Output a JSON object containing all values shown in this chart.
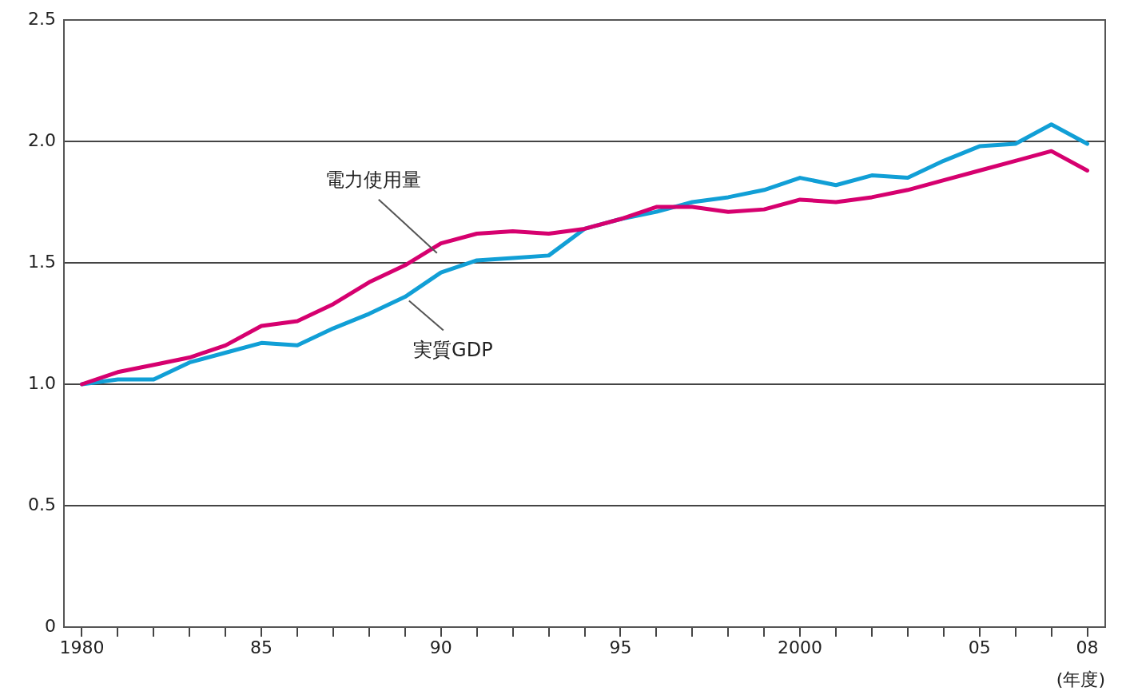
{
  "chart_data": {
    "type": "line",
    "xlabel": "(年度)",
    "x": [
      1980,
      1981,
      1982,
      1983,
      1984,
      1985,
      1986,
      1987,
      1988,
      1989,
      1990,
      1991,
      1992,
      1993,
      1994,
      1995,
      1996,
      1997,
      1998,
      1999,
      2000,
      2001,
      2002,
      2003,
      2004,
      2005,
      2006,
      2007,
      2008
    ],
    "series": [
      {
        "name": "電力使用量",
        "color": "#d6006f",
        "values": [
          1.0,
          1.05,
          1.08,
          1.11,
          1.16,
          1.24,
          1.26,
          1.33,
          1.42,
          1.49,
          1.58,
          1.62,
          1.63,
          1.62,
          1.64,
          1.68,
          1.73,
          1.73,
          1.71,
          1.72,
          1.76,
          1.75,
          1.77,
          1.8,
          1.84,
          1.88,
          1.92,
          1.96,
          1.88
        ]
      },
      {
        "name": "実質GDP",
        "color": "#119fd6",
        "values": [
          1.0,
          1.02,
          1.02,
          1.09,
          1.13,
          1.17,
          1.16,
          1.23,
          1.29,
          1.36,
          1.46,
          1.51,
          1.52,
          1.53,
          1.64,
          1.68,
          1.71,
          1.75,
          1.77,
          1.8,
          1.85,
          1.82,
          1.86,
          1.85,
          1.92,
          1.98,
          1.99,
          2.07,
          1.99
        ]
      }
    ],
    "xlim": [
      1979.5,
      2008.5
    ],
    "xticks": [
      1980,
      {
        "value": 1981,
        "label": null
      },
      {
        "value": 1982,
        "label": null
      },
      {
        "value": 1983,
        "label": null
      },
      {
        "value": 1984,
        "label": null
      },
      {
        "value": 1985,
        "label": "85"
      },
      {
        "value": 1986,
        "label": null
      },
      {
        "value": 1987,
        "label": null
      },
      {
        "value": 1988,
        "label": null
      },
      {
        "value": 1989,
        "label": null
      },
      {
        "value": 1990,
        "label": "90"
      },
      {
        "value": 1991,
        "label": null
      },
      {
        "value": 1992,
        "label": null
      },
      {
        "value": 1993,
        "label": null
      },
      {
        "value": 1994,
        "label": null
      },
      {
        "value": 1995,
        "label": "95"
      },
      {
        "value": 1996,
        "label": null
      },
      {
        "value": 1997,
        "label": null
      },
      {
        "value": 1998,
        "label": null
      },
      {
        "value": 1999,
        "label": null
      },
      2000,
      {
        "value": 2001,
        "label": null
      },
      {
        "value": 2002,
        "label": null
      },
      {
        "value": 2003,
        "label": null
      },
      {
        "value": 2004,
        "label": null
      },
      {
        "value": 2005,
        "label": "05"
      },
      {
        "value": 2006,
        "label": null
      },
      {
        "value": 2007,
        "label": null
      },
      {
        "value": 2008,
        "label": "08"
      }
    ],
    "ylim": [
      0,
      2.5
    ],
    "yticks": [
      0,
      0.5,
      {
        "value": 1,
        "label": "1.0"
      },
      1.5,
      {
        "value": 2,
        "label": "2.0"
      },
      2.5
    ],
    "grid": "y",
    "legend": false,
    "marker": "none",
    "line_style": "solid"
  }
}
